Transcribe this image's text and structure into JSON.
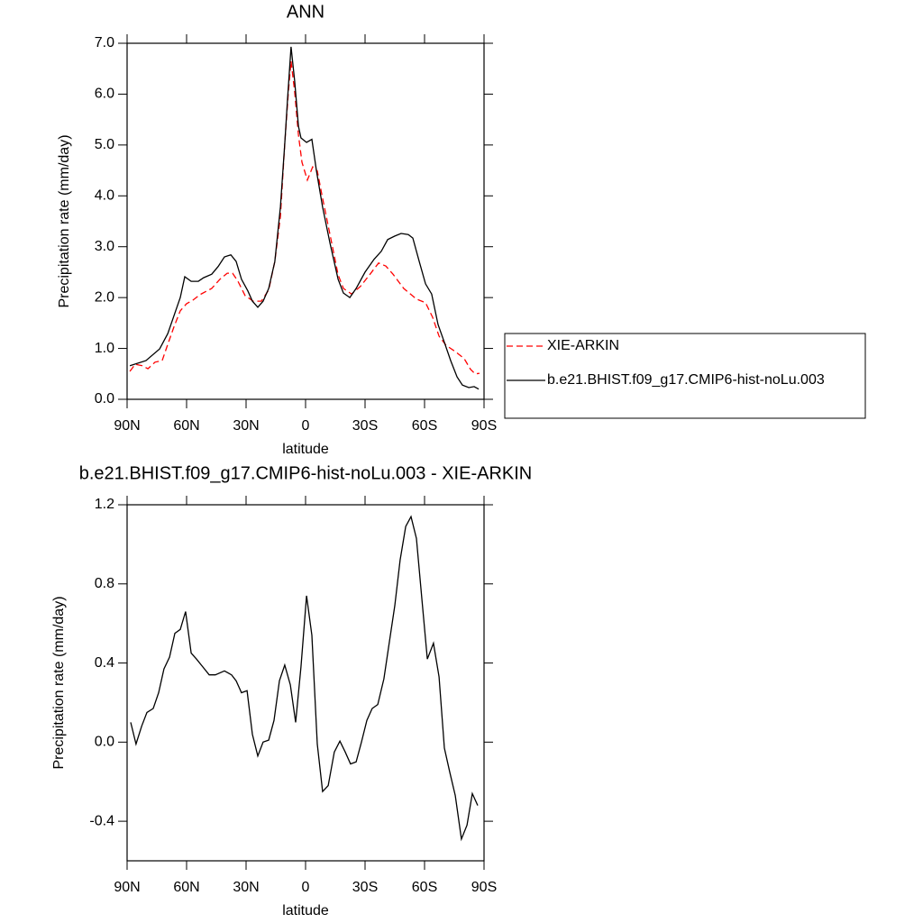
{
  "chart_data": [
    {
      "type": "line",
      "title": "ANN",
      "xlabel": "latitude",
      "ylabel": "Precipitation rate (mm/day)",
      "xlim": [
        90,
        -90
      ],
      "ylim": [
        0,
        7
      ],
      "xticks": [
        {
          "value": 90,
          "label": "90N"
        },
        {
          "value": 60,
          "label": "60N"
        },
        {
          "value": 30,
          "label": "30N"
        },
        0,
        {
          "value": -30,
          "label": "30S"
        },
        {
          "value": -60,
          "label": "60S"
        },
        {
          "value": -90,
          "label": "90S"
        }
      ],
      "yticks": [
        {
          "value": 0,
          "label": "0.0"
        },
        {
          "value": 1,
          "label": "1.0"
        },
        {
          "value": 2,
          "label": "2.0"
        },
        {
          "value": 3,
          "label": "3.0"
        },
        {
          "value": 4,
          "label": "4.0"
        },
        {
          "value": 5,
          "label": "5.0"
        },
        {
          "value": 6,
          "label": "6.0"
        },
        {
          "value": 7,
          "label": "7.0"
        }
      ],
      "legend": "right",
      "series": [
        {
          "name": "XIE-ARKIN",
          "color": "#ff0000",
          "linestyle": "dashed",
          "x": [
            88.6,
            85.9,
            82.3,
            79.5,
            75.9,
            72.3,
            69.5,
            66.4,
            63.2,
            60,
            56.8,
            53.2,
            47.3,
            43.2,
            39.5,
            36.8,
            34.1,
            30.5,
            26.4,
            22.3,
            18.6,
            15.5,
            12.7,
            10.5,
            8.6,
            7.3,
            5.5,
            3.6,
            1.8,
            -0.9,
            -3.6,
            -5.9,
            -8.6,
            -12.3,
            -16.4,
            -19.1,
            -23.2,
            -27.7,
            -32.3,
            -36.8,
            -40.5,
            -44.1,
            -49.5,
            -55.9,
            -60.5,
            -64.1,
            -67.3,
            -70.9,
            -75.5,
            -80,
            -83.2,
            -85.5,
            -87.7
          ],
          "values": [
            0.55,
            0.69,
            0.66,
            0.6,
            0.73,
            0.76,
            1.08,
            1.42,
            1.74,
            1.88,
            1.95,
            2.06,
            2.18,
            2.36,
            2.48,
            2.48,
            2.32,
            2.04,
            1.93,
            1.93,
            2.15,
            2.71,
            3.6,
            5.02,
            6.08,
            6.65,
            6.05,
            5.2,
            4.66,
            4.31,
            4.57,
            4.49,
            3.95,
            3.24,
            2.45,
            2.18,
            2.07,
            2.22,
            2.45,
            2.68,
            2.62,
            2.46,
            2.18,
            1.97,
            1.9,
            1.61,
            1.24,
            1.06,
            0.94,
            0.8,
            0.59,
            0.5,
            0.51
          ]
        },
        {
          "name": "b.e21.BHIST.f09_g17.CMIP6-hist-noLu.003",
          "color": "#000000",
          "linestyle": "solid",
          "x": [
            88.6,
            80.5,
            73.6,
            69.5,
            65.5,
            63.2,
            60.9,
            57.7,
            54.1,
            51.4,
            47.3,
            44.1,
            40.9,
            37.7,
            35,
            32.3,
            29.1,
            26.8,
            24.1,
            21.4,
            18.6,
            15.5,
            12.7,
            10.5,
            9.1,
            7.3,
            5.5,
            3.6,
            2.3,
            -0.5,
            -3.2,
            -5.5,
            -8.6,
            -12.3,
            -16.4,
            -19.1,
            -22.3,
            -25.5,
            -30,
            -34.5,
            -38.2,
            -41.4,
            -45,
            -48.2,
            -51.8,
            -54.1,
            -57.3,
            -60.5,
            -63.6,
            -66.8,
            -70,
            -73.2,
            -76.4,
            -79.1,
            -82.3,
            -85,
            -87.3
          ],
          "values": [
            0.66,
            0.76,
            0.99,
            1.29,
            1.74,
            2.0,
            2.41,
            2.32,
            2.32,
            2.39,
            2.46,
            2.61,
            2.8,
            2.84,
            2.71,
            2.36,
            2.13,
            1.93,
            1.81,
            1.93,
            2.18,
            2.71,
            3.78,
            5.02,
            5.9,
            6.93,
            6.26,
            5.37,
            5.14,
            5.05,
            5.11,
            4.49,
            3.78,
            3.07,
            2.36,
            2.09,
            2.0,
            2.18,
            2.5,
            2.75,
            2.91,
            3.14,
            3.21,
            3.26,
            3.24,
            3.17,
            2.71,
            2.27,
            2.07,
            1.47,
            1.12,
            0.76,
            0.44,
            0.28,
            0.23,
            0.25,
            0.2
          ]
        }
      ]
    },
    {
      "type": "line",
      "title": "b.e21.BHIST.f09_g17.CMIP6-hist-noLu.003 - XIE-ARKIN",
      "xlabel": "latitude",
      "ylabel": "Precipitation rate (mm/day)",
      "xlim": [
        90,
        -90
      ],
      "ylim": [
        -0.6,
        1.2
      ],
      "xticks": [
        {
          "value": 90,
          "label": "90N"
        },
        {
          "value": 60,
          "label": "60N"
        },
        {
          "value": 30,
          "label": "30N"
        },
        0,
        {
          "value": -30,
          "label": "30S"
        },
        {
          "value": -60,
          "label": "60S"
        },
        {
          "value": -90,
          "label": "90S"
        }
      ],
      "yticks": [
        -0.4,
        {
          "value": 0,
          "label": "0.0"
        },
        0.4,
        0.8,
        1.2
      ],
      "series": [
        {
          "color": "#000000",
          "linestyle": "solid",
          "x": [
            88.2,
            85.5,
            82.7,
            80,
            76.8,
            74.1,
            71.4,
            68.6,
            65.9,
            63.2,
            60.5,
            57.7,
            55,
            51.8,
            48.6,
            45.5,
            40.9,
            37.3,
            35,
            32.3,
            29.5,
            26.8,
            24.1,
            21.4,
            18.6,
            15.9,
            13.2,
            10.5,
            7.7,
            5,
            2.3,
            -0.5,
            -3.2,
            -5.9,
            -8.6,
            -11.4,
            -14.5,
            -17.3,
            -20,
            -22.7,
            -25.5,
            -28.2,
            -30.9,
            -33.6,
            -36.4,
            -39.5,
            -42.3,
            -45,
            -47.7,
            -50.5,
            -53.2,
            -55.9,
            -58.6,
            -61.4,
            -64.5,
            -67.3,
            -70,
            -72.7,
            -75.5,
            -78.6,
            -81.4,
            -84.1,
            -86.8
          ],
          "values": [
            0.1,
            -0.01,
            0.08,
            0.15,
            0.17,
            0.25,
            0.37,
            0.43,
            0.55,
            0.57,
            0.66,
            0.45,
            0.42,
            0.38,
            0.34,
            0.34,
            0.36,
            0.34,
            0.31,
            0.25,
            0.26,
            0.04,
            -0.07,
            0,
            0.01,
            0.11,
            0.31,
            0.39,
            0.29,
            0.1,
            0.38,
            0.74,
            0.54,
            -0.01,
            -0.25,
            -0.22,
            -0.05,
            0.005,
            -0.05,
            -0.11,
            -0.1,
            0,
            0.11,
            0.17,
            0.19,
            0.32,
            0.51,
            0.69,
            0.92,
            1.09,
            1.14,
            1.03,
            0.73,
            0.42,
            0.5,
            0.33,
            -0.03,
            -0.15,
            -0.27,
            -0.49,
            -0.42,
            -0.26,
            -0.32
          ]
        }
      ]
    }
  ]
}
